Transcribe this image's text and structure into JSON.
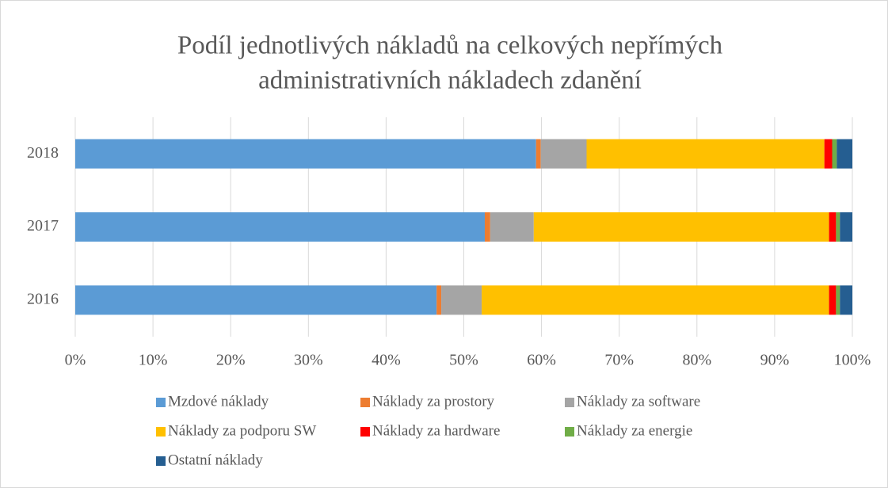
{
  "chart_data": {
    "type": "stacked_bar_horizontal",
    "title": [
      "Podíl jednotlivých nákladů na celkových nepřímých",
      "administrativních nákladech zdanění"
    ],
    "categories": [
      "2016",
      "2017",
      "2018"
    ],
    "series": [
      {
        "name": "Mzdové náklady",
        "color": "#5b9bd5",
        "values": [
          46.5,
          52.7,
          59.3
        ]
      },
      {
        "name": "Náklady za prostory",
        "color": "#ed7d31",
        "values": [
          0.6,
          0.7,
          0.6
        ]
      },
      {
        "name": "Náklady za software",
        "color": "#a5a5a5",
        "values": [
          5.2,
          5.6,
          5.9
        ]
      },
      {
        "name": "Náklady za podporu SW",
        "color": "#ffc000",
        "values": [
          44.7,
          38.0,
          30.6
        ]
      },
      {
        "name": "Náklady za hardware",
        "color": "#ff0000",
        "values": [
          0.9,
          0.9,
          1.0
        ]
      },
      {
        "name": "Náklady za energie",
        "color": "#70ad47",
        "values": [
          0.5,
          0.5,
          0.6
        ]
      },
      {
        "name": "Ostatní náklady",
        "color": "#255e91",
        "values": [
          1.6,
          1.6,
          2.0
        ]
      }
    ],
    "xlim": [
      0,
      100
    ],
    "xticks": [
      {
        "value": 0,
        "label": "0%"
      },
      {
        "value": 10,
        "label": "10%"
      },
      {
        "value": 20,
        "label": "20%"
      },
      {
        "value": 30,
        "label": "30%"
      },
      {
        "value": 40,
        "label": "40%"
      },
      {
        "value": 50,
        "label": "50%"
      },
      {
        "value": 60,
        "label": "60%"
      },
      {
        "value": 70,
        "label": "70%"
      },
      {
        "value": 80,
        "label": "80%"
      },
      {
        "value": 90,
        "label": "90%"
      },
      {
        "value": 100,
        "label": "100%"
      }
    ],
    "grid": true,
    "legend": "bottom"
  }
}
